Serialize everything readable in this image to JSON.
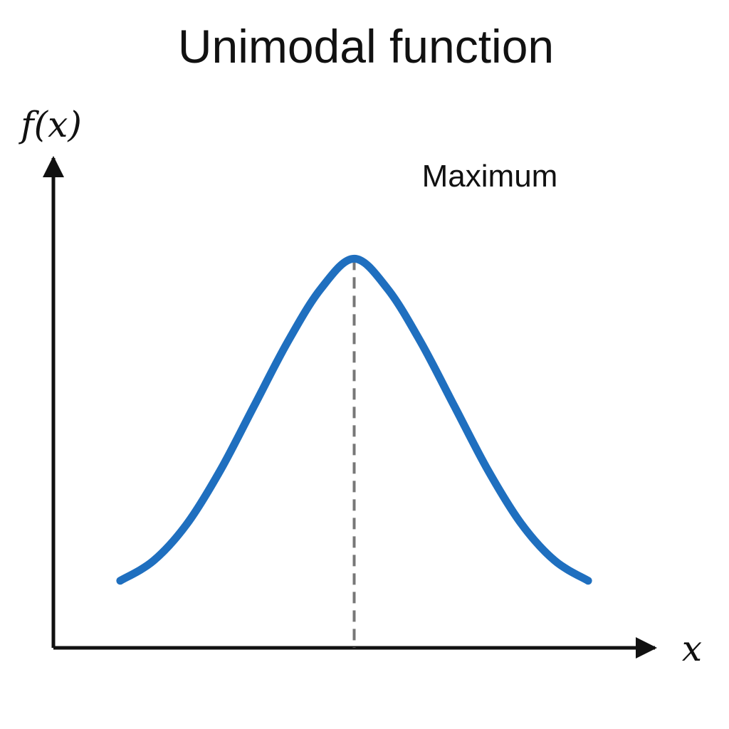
{
  "chart_data": {
    "type": "line",
    "title": "Unimodal function",
    "ylabel": "f(x)",
    "xlabel": "x",
    "annotation": "Maximum",
    "peak_x": 0,
    "x": [
      -3.5,
      -3,
      -2.5,
      -2,
      -1.5,
      -1,
      -0.5,
      0,
      0.5,
      1,
      1.5,
      2,
      2.5,
      3,
      3.5
    ],
    "y": [
      0.04,
      0.1,
      0.21,
      0.37,
      0.56,
      0.75,
      0.91,
      1,
      0.91,
      0.75,
      0.56,
      0.37,
      0.21,
      0.1,
      0.04
    ],
    "xlim": [
      -4.5,
      4.5
    ],
    "ylim": [
      -0.16,
      1.3
    ],
    "grid": false,
    "colors": {
      "curve": "#1f6fbf",
      "axis": "#111111",
      "peak_line": "#777777"
    }
  }
}
